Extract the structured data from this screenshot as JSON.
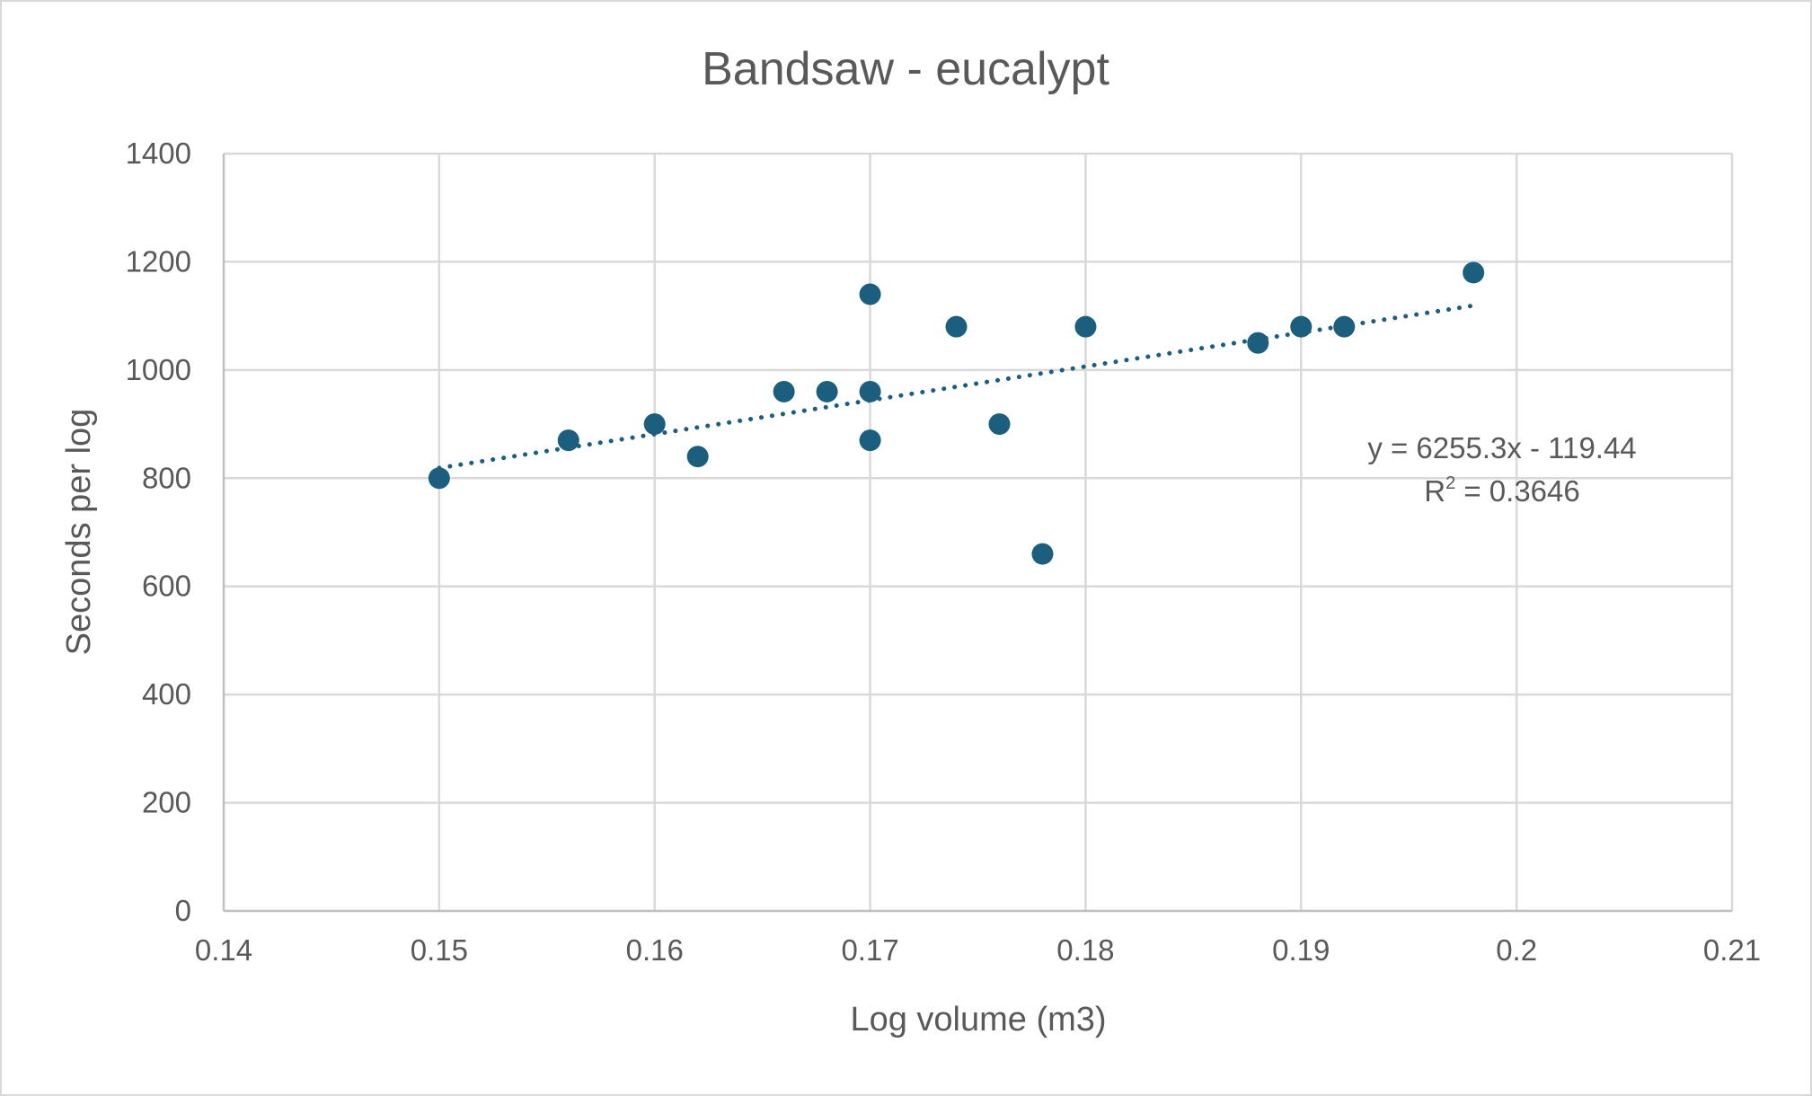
{
  "chart_data": {
    "type": "scatter",
    "title": "Bandsaw - eucalypt",
    "xlabel": "Log volume (m3)",
    "ylabel": "Seconds per log",
    "xlim": [
      0.14,
      0.21
    ],
    "ylim": [
      0,
      1400
    ],
    "x_ticks": [
      "0.14",
      "0.15",
      "0.16",
      "0.17",
      "0.18",
      "0.19",
      "0.2",
      "0.21"
    ],
    "y_ticks": [
      "0",
      "200",
      "400",
      "600",
      "800",
      "1000",
      "1200",
      "1400"
    ],
    "grid": true,
    "legend": "none",
    "color": "#1b5e7e",
    "points": [
      {
        "x": 0.15,
        "y": 800
      },
      {
        "x": 0.156,
        "y": 870
      },
      {
        "x": 0.16,
        "y": 900
      },
      {
        "x": 0.162,
        "y": 840
      },
      {
        "x": 0.166,
        "y": 960
      },
      {
        "x": 0.168,
        "y": 960
      },
      {
        "x": 0.17,
        "y": 1140
      },
      {
        "x": 0.17,
        "y": 960
      },
      {
        "x": 0.17,
        "y": 870
      },
      {
        "x": 0.174,
        "y": 1080
      },
      {
        "x": 0.176,
        "y": 900
      },
      {
        "x": 0.178,
        "y": 660
      },
      {
        "x": 0.18,
        "y": 1080
      },
      {
        "x": 0.188,
        "y": 1050
      },
      {
        "x": 0.19,
        "y": 1080
      },
      {
        "x": 0.192,
        "y": 1080
      },
      {
        "x": 0.198,
        "y": 1180
      }
    ],
    "trendline": {
      "type": "linear",
      "slope": 6255.3,
      "intercept": -119.44,
      "x_range": [
        0.15,
        0.198
      ],
      "equation_label": "y = 6255.3x - 119.44",
      "r2_prefix": "R",
      "r2_superscript": "2",
      "r2_value": " = 0.3646"
    }
  }
}
